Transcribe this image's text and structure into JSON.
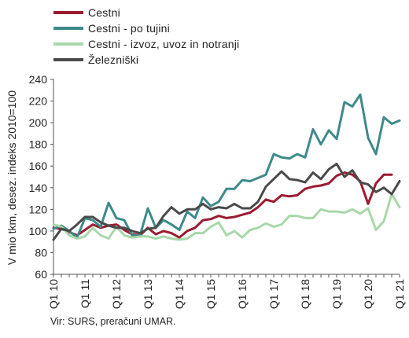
{
  "source_note": "Vir: SURS, preračuni UMAR.",
  "chart_data": {
    "type": "line",
    "title": "",
    "xlabel": "",
    "ylabel": "V mio tkm, desez. indeks 2010=100",
    "ylim": [
      60,
      240
    ],
    "yticks": [
      60,
      80,
      100,
      120,
      140,
      160,
      180,
      200,
      220,
      240
    ],
    "grid": false,
    "legend": "top-left",
    "xtick_labels": [
      "Q1 10",
      "Q1 11",
      "Q1 12",
      "Q1 13",
      "Q1 14",
      "Q1 15",
      "Q1 16",
      "Q1 17",
      "Q1 18",
      "Q1 19",
      "Q1 20",
      "Q1 21"
    ],
    "x": [
      "Q1 10",
      "Q2 10",
      "Q3 10",
      "Q4 10",
      "Q1 11",
      "Q2 11",
      "Q3 11",
      "Q4 11",
      "Q1 12",
      "Q2 12",
      "Q3 12",
      "Q4 12",
      "Q1 13",
      "Q2 13",
      "Q3 13",
      "Q4 13",
      "Q1 14",
      "Q2 14",
      "Q3 14",
      "Q4 14",
      "Q1 15",
      "Q2 15",
      "Q3 15",
      "Q4 15",
      "Q1 16",
      "Q2 16",
      "Q3 16",
      "Q4 16",
      "Q1 17",
      "Q2 17",
      "Q3 17",
      "Q4 17",
      "Q1 18",
      "Q2 18",
      "Q3 18",
      "Q4 18",
      "Q1 19",
      "Q2 19",
      "Q3 19",
      "Q4 19",
      "Q1 20",
      "Q2 20",
      "Q3 20",
      "Q4 20",
      "Q1 21"
    ],
    "series": [
      {
        "name": "Cestni",
        "color": "#9b1b30",
        "values": [
          103,
          102,
          99,
          96,
          101,
          106,
          103,
          105,
          106,
          101,
          97,
          96,
          103,
          97,
          100,
          98,
          94,
          100,
          103,
          110,
          111,
          114,
          112,
          113,
          115,
          117,
          122,
          129,
          127,
          133,
          132,
          133,
          139,
          141,
          142,
          144,
          151,
          154,
          152,
          146,
          125,
          144,
          152,
          152,
          null
        ]
      },
      {
        "name": "Cestni - po tujini",
        "color": "#3e8a8a",
        "values": [
          102,
          105,
          100,
          94,
          112,
          110,
          104,
          126,
          112,
          110,
          96,
          96,
          121,
          103,
          110,
          106,
          101,
          118,
          112,
          131,
          123,
          127,
          139,
          139,
          147,
          146,
          149,
          152,
          171,
          168,
          167,
          171,
          168,
          194,
          180,
          193,
          185,
          219,
          215,
          226,
          186,
          171,
          205,
          199,
          202
        ]
      },
      {
        "name": "Cestni - izvoz, uvoz in notranji",
        "color": "#a7d8a9",
        "values": [
          106,
          104,
          96,
          93,
          95,
          103,
          96,
          93,
          104,
          96,
          94,
          95,
          95,
          93,
          95,
          93,
          92,
          93,
          98,
          98,
          104,
          108,
          96,
          100,
          94,
          101,
          103,
          107,
          104,
          106,
          114,
          114,
          112,
          112,
          120,
          118,
          118,
          117,
          120,
          116,
          121,
          101,
          109,
          134,
          122
        ]
      },
      {
        "name": "Železniški",
        "color": "#4a4a4a",
        "values": [
          92,
          102,
          100,
          106,
          113,
          113,
          108,
          105,
          103,
          103,
          100,
          98,
          102,
          103,
          114,
          122,
          116,
          120,
          120,
          125,
          120,
          122,
          121,
          125,
          121,
          121,
          127,
          141,
          148,
          155,
          148,
          147,
          145,
          154,
          148,
          157,
          162,
          150,
          156,
          145,
          143,
          136,
          140,
          134,
          146
        ]
      }
    ]
  }
}
